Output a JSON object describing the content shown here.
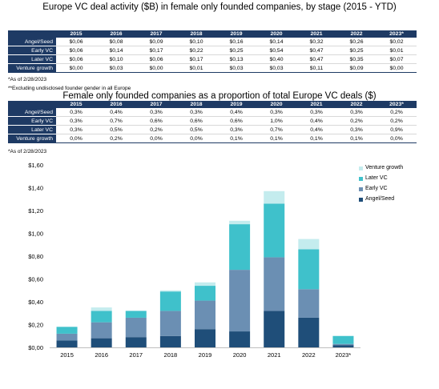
{
  "table1": {
    "title": "Europe VC deal activity ($B) in female only founded companies, by stage (2015 - YTD)",
    "columns": [
      "2015",
      "2016",
      "2017",
      "2018",
      "2019",
      "2020",
      "2021",
      "2022",
      "2023*"
    ],
    "rows": [
      {
        "label": "Angel/Seed",
        "values": [
          "$0,06",
          "$0,08",
          "$0,09",
          "$0,10",
          "$0,16",
          "$0,14",
          "$0,32",
          "$0,26",
          "$0,02"
        ]
      },
      {
        "label": "Early VC",
        "values": [
          "$0,06",
          "$0,14",
          "$0,17",
          "$0,22",
          "$0,25",
          "$0,54",
          "$0,47",
          "$0,25",
          "$0,01"
        ]
      },
      {
        "label": "Later VC",
        "values": [
          "$0,06",
          "$0,10",
          "$0,06",
          "$0,17",
          "$0,13",
          "$0,40",
          "$0,47",
          "$0,35",
          "$0,07"
        ]
      },
      {
        "label": "Venture growth",
        "values": [
          "$0,00",
          "$0,03",
          "$0,00",
          "$0,01",
          "$0,03",
          "$0,03",
          "$0,11",
          "$0,09",
          "$0,00"
        ]
      }
    ],
    "note1": "*As of 2/28/2023",
    "note2": "**Excluding undisclosed founder gender in all Europe"
  },
  "table2": {
    "title": "Female only founded companies as a proportion of total Europe VC deals ($)",
    "columns": [
      "2015",
      "2016",
      "2017",
      "2018",
      "2019",
      "2020",
      "2021",
      "2022",
      "2023*"
    ],
    "rows": [
      {
        "label": "Angel/Seed",
        "values": [
          "0,3%",
          "0,4%",
          "0,3%",
          "0,3%",
          "0,4%",
          "0,3%",
          "0,3%",
          "0,3%",
          "0,2%"
        ]
      },
      {
        "label": "Early VC",
        "values": [
          "0,3%",
          "0,7%",
          "0,6%",
          "0,6%",
          "0,6%",
          "1,0%",
          "0,4%",
          "0,2%",
          "0,2%"
        ]
      },
      {
        "label": "Later VC",
        "values": [
          "0,3%",
          "0,5%",
          "0,2%",
          "0,5%",
          "0,3%",
          "0,7%",
          "0,4%",
          "0,3%",
          "0,9%"
        ]
      },
      {
        "label": "Venture growth",
        "values": [
          "0,0%",
          "0,2%",
          "0,0%",
          "0,0%",
          "0,1%",
          "0,1%",
          "0,1%",
          "0,1%",
          "0,0%"
        ]
      }
    ],
    "note1": "*As of 2/28/2023"
  },
  "chart_data": {
    "type": "bar",
    "stacked": true,
    "categories": [
      "2015",
      "2016",
      "2017",
      "2018",
      "2019",
      "2020",
      "2021",
      "2022",
      "2023*"
    ],
    "series": [
      {
        "name": "Angel/Seed",
        "color": "#1f4e79",
        "values": [
          0.06,
          0.08,
          0.09,
          0.1,
          0.16,
          0.14,
          0.32,
          0.26,
          0.02
        ]
      },
      {
        "name": "Early VC",
        "color": "#6b8fb3",
        "values": [
          0.06,
          0.14,
          0.17,
          0.22,
          0.25,
          0.54,
          0.47,
          0.25,
          0.01
        ]
      },
      {
        "name": "Later VC",
        "color": "#3fc1cb",
        "values": [
          0.06,
          0.1,
          0.06,
          0.17,
          0.13,
          0.4,
          0.47,
          0.35,
          0.07
        ]
      },
      {
        "name": "Venture growth",
        "color": "#c4ecee",
        "values": [
          0.0,
          0.03,
          0.0,
          0.01,
          0.03,
          0.03,
          0.11,
          0.09,
          0.0
        ]
      }
    ],
    "yticks": [
      "$0,00",
      "$0,20",
      "$0,40",
      "$0,60",
      "$0,80",
      "$1,00",
      "$1,20",
      "$1,40",
      "$1,60"
    ],
    "ylim": [
      0,
      1.6
    ],
    "legend_position": "top-right",
    "legend_order": [
      "Venture growth",
      "Later VC",
      "Early VC",
      "Angel/Seed"
    ],
    "grid": false
  }
}
